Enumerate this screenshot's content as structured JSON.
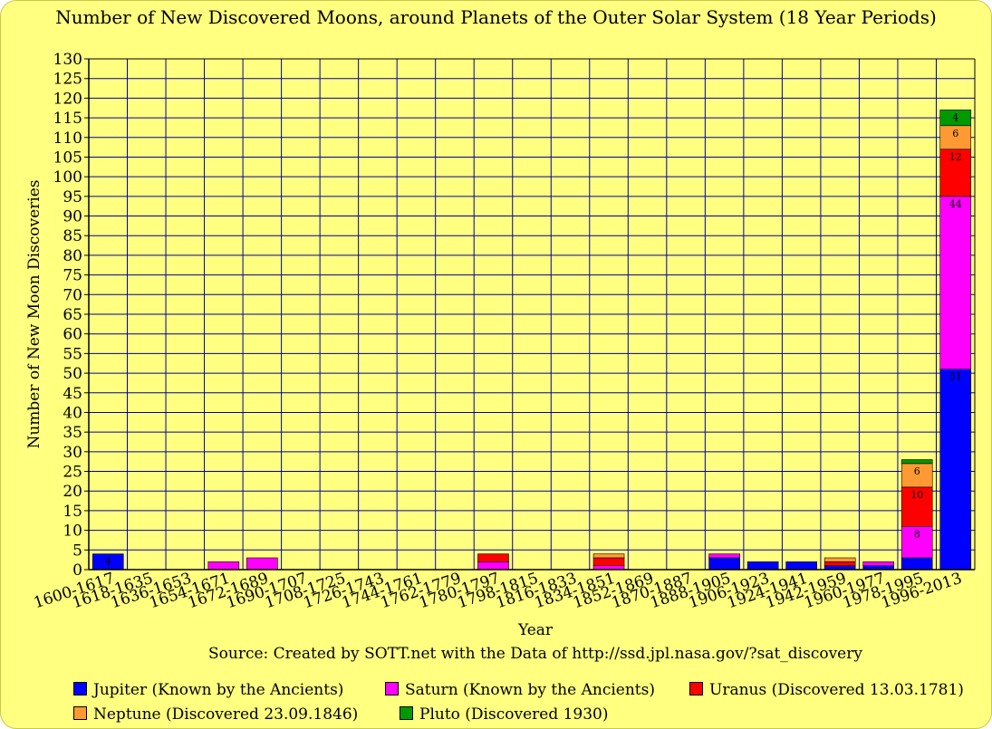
{
  "chart_data": {
    "type": "bar",
    "stacked": true,
    "title": "Number of New Discovered Moons, around Planets of the Outer Solar System (18 Year Periods)",
    "xlabel": "Year",
    "ylabel": "Number of New Moon Discoveries",
    "source": "Source: Created by SOTT.net with the Data of http://ssd.jpl.nasa.gov/?sat_discovery",
    "ylim": [
      0,
      130
    ],
    "ytick_step": 5,
    "grid": true,
    "legend_position": "bottom",
    "categories": [
      "1600-1617",
      "1618-1635",
      "1636-1653",
      "1654-1671",
      "1672-1689",
      "1690-1707",
      "1708-1725",
      "1726-1743",
      "1744-1761",
      "1762-1779",
      "1780-1797",
      "1798-1815",
      "1816-1833",
      "1834-1851",
      "1852-1869",
      "1870-1887",
      "1888-1905",
      "1906-1923",
      "1924-1941",
      "1942-1959",
      "1960-1977",
      "1978-1995",
      "1996-2013"
    ],
    "series": [
      {
        "name": "Jupiter (Known by the Ancients)",
        "color": "#0000ff",
        "values": [
          4,
          0,
          0,
          0,
          0,
          0,
          0,
          0,
          0,
          0,
          0,
          0,
          0,
          0,
          0,
          0,
          3,
          2,
          2,
          1,
          1,
          3,
          51
        ],
        "data_labels": {
          "0": "4",
          "22": "51"
        }
      },
      {
        "name": "Saturn (Known by the Ancients)",
        "color": "#ff00ff",
        "values": [
          0,
          0,
          0,
          2,
          3,
          0,
          0,
          0,
          0,
          0,
          2,
          0,
          0,
          1,
          0,
          0,
          1,
          0,
          0,
          0,
          1,
          8,
          44
        ],
        "data_labels": {
          "21": "8",
          "22": "44"
        }
      },
      {
        "name": "Uranus (Discovered 13.03.1781)",
        "color": "#ff0000",
        "values": [
          0,
          0,
          0,
          0,
          0,
          0,
          0,
          0,
          0,
          0,
          2,
          0,
          0,
          2,
          0,
          0,
          0,
          0,
          0,
          1,
          0,
          10,
          12
        ],
        "data_labels": {
          "21": "10",
          "22": "12"
        }
      },
      {
        "name": "Neptune (Discovered 23.09.1846)",
        "color": "#ff9933",
        "values": [
          0,
          0,
          0,
          0,
          0,
          0,
          0,
          0,
          0,
          0,
          0,
          0,
          0,
          1,
          0,
          0,
          0,
          0,
          0,
          1,
          0,
          6,
          6
        ],
        "data_labels": {
          "21": "6",
          "22": "6"
        }
      },
      {
        "name": "Pluto (Discovered 1930)",
        "color": "#009900",
        "values": [
          0,
          0,
          0,
          0,
          0,
          0,
          0,
          0,
          0,
          0,
          0,
          0,
          0,
          0,
          0,
          0,
          0,
          0,
          0,
          0,
          0,
          1,
          4
        ],
        "data_labels": {
          "22": "4"
        }
      }
    ]
  },
  "colors": {
    "background": "#ffff80",
    "plot_background": "#ffff80",
    "grid": "#000099"
  }
}
